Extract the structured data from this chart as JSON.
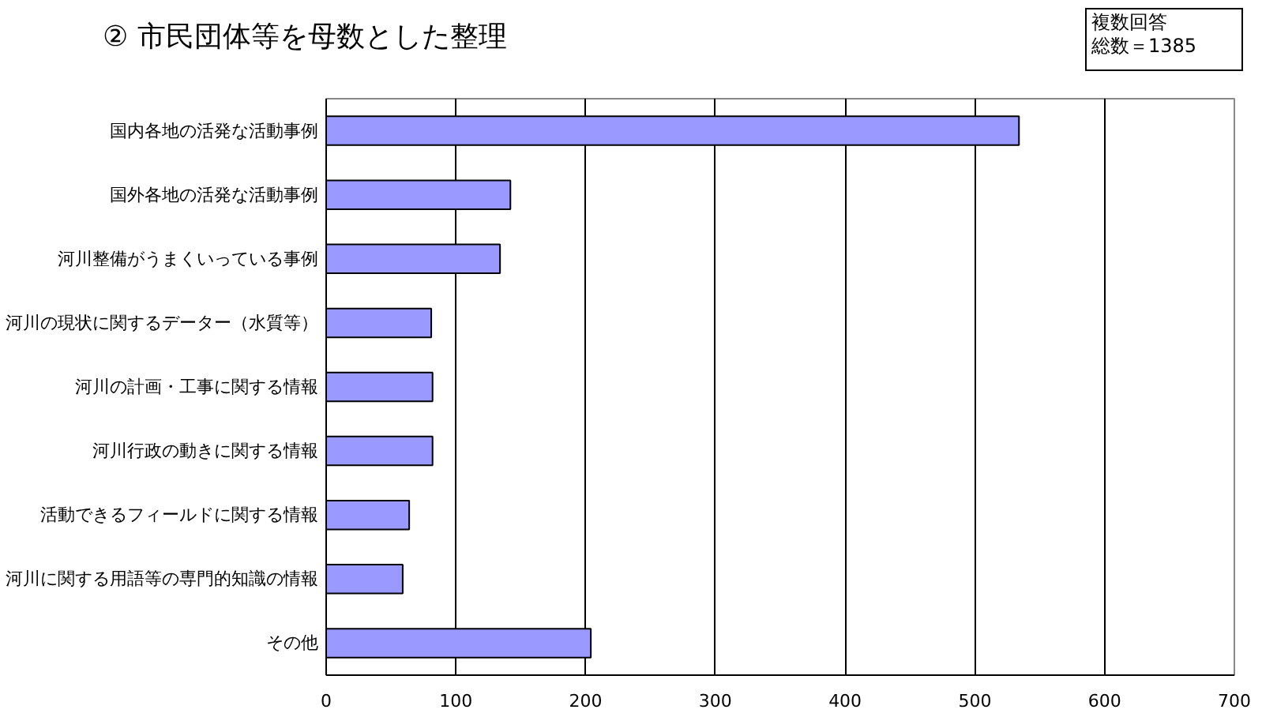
{
  "chart_data": {
    "type": "bar",
    "orientation": "horizontal",
    "title": "② 市民団体等を母数とした整理",
    "annotations": [
      "複数回答",
      "総数＝1385"
    ],
    "categories": [
      "国内各地の活発な活動事例",
      "国外各地の活発な活動事例",
      "河川整備がうまくいっている事例",
      "河川の現状に関するデーター（水質等）",
      "河川の計画・工事に関する情報",
      "河川行政の動きに関する情報",
      "活動できるフィールドに関する情報",
      "河川に関する用語等の専門的知識の情報",
      "その他"
    ],
    "values": [
      534,
      142,
      134,
      81,
      82,
      82,
      64,
      59,
      204
    ],
    "color": "#9999ff",
    "xlim": [
      0,
      700
    ],
    "xticks": [
      0,
      100,
      200,
      300,
      400,
      500,
      600,
      700
    ],
    "grid": "x"
  }
}
